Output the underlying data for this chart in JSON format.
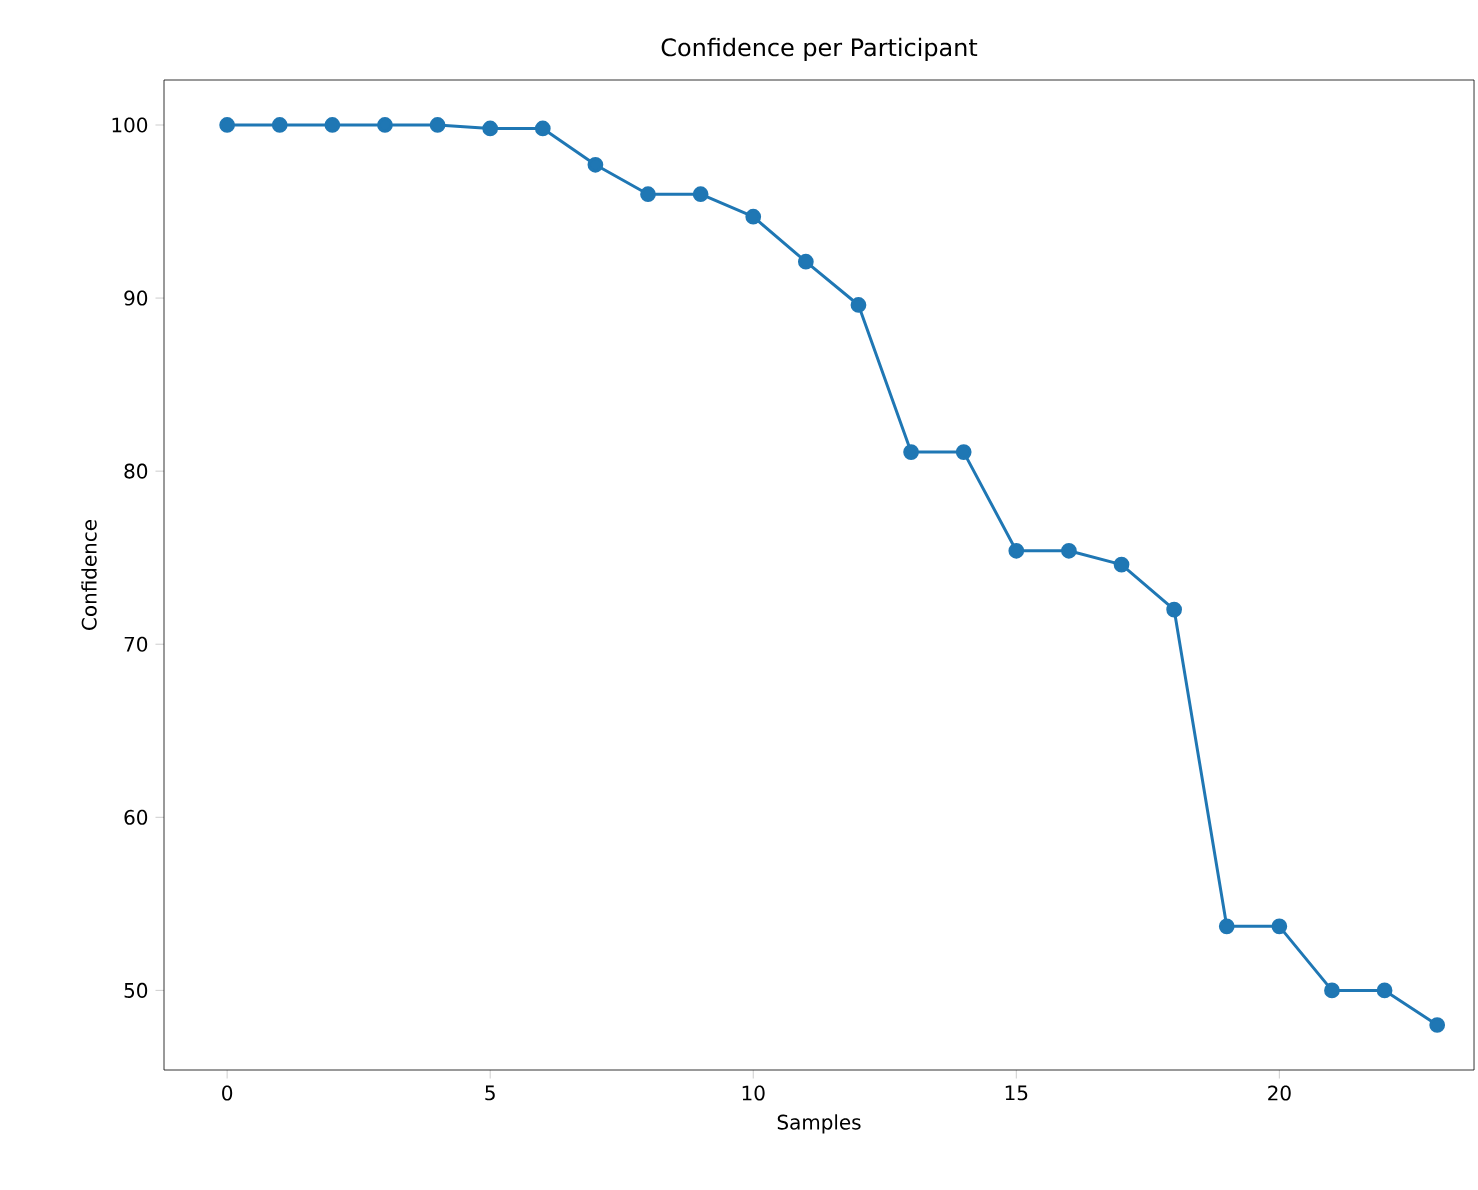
{
  "chart_data": {
    "type": "line",
    "title": "Confidence per Participant",
    "xlabel": "Samples",
    "ylabel": "Confidence",
    "x": [
      0,
      1,
      2,
      3,
      4,
      5,
      6,
      7,
      8,
      9,
      10,
      11,
      12,
      13,
      14,
      15,
      16,
      17,
      18,
      19,
      20,
      21,
      22,
      23
    ],
    "series": [
      {
        "color": "#1f77b4",
        "values": [
          100,
          100,
          100,
          100,
          100,
          99.8,
          99.8,
          97.7,
          96.0,
          96.0,
          94.7,
          92.1,
          89.6,
          81.1,
          81.1,
          75.4,
          75.4,
          74.6,
          72.0,
          53.7,
          53.7,
          50.0,
          50.0,
          48.0
        ]
      }
    ],
    "xlim": [
      -1.2,
      23.7
    ],
    "ylim": [
      45.4,
      102.6
    ],
    "xticks": [
      0,
      5,
      10,
      15,
      20
    ],
    "yticks": [
      50,
      60,
      70,
      80,
      90,
      100
    ],
    "marker": "circle",
    "line_style": "solid",
    "grid": false
  }
}
